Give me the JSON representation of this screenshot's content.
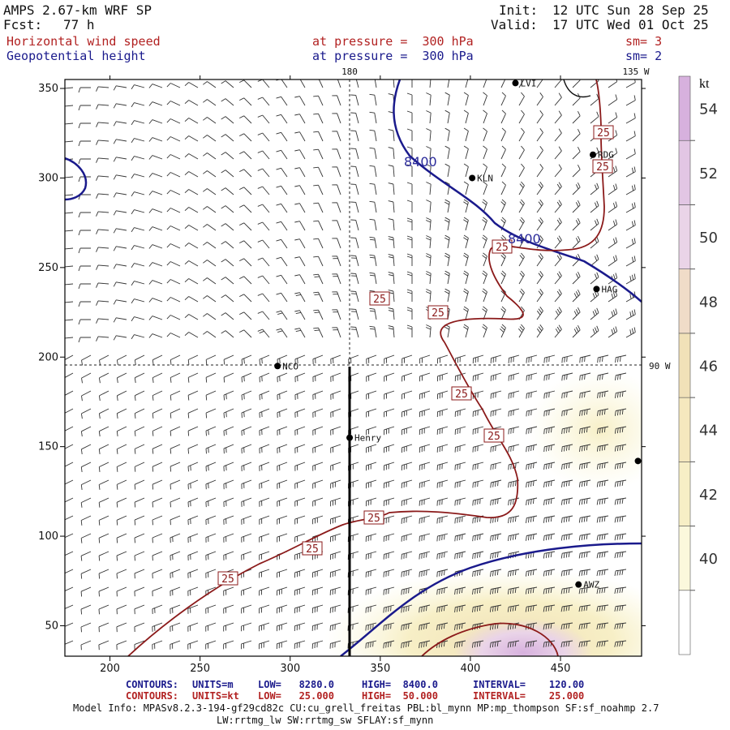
{
  "header": {
    "model_line": "AMPS 2.67-km WRF SP",
    "fcst_label": "Fcst:",
    "fcst_value": "77 h",
    "init_label": "Init:",
    "init_value": "12 UTC Sun 28 Sep 25",
    "valid_label": "Valid:",
    "valid_value": "17 UTC Wed 01 Oct 25",
    "field1": "Horizontal wind speed",
    "field1_pressure": "at pressure =  300 hPa",
    "field1_sm": "sm= 3",
    "field2": "Geopotential height",
    "field2_pressure": "at pressure =  300 hPa",
    "field2_sm": "sm= 2"
  },
  "chart_data": {
    "type": "contour_map",
    "xlim": [
      175,
      495
    ],
    "ylim": [
      33,
      355
    ],
    "x_ticks": [
      200,
      250,
      300,
      350,
      400,
      450
    ],
    "y_ticks": [
      50,
      100,
      150,
      200,
      250,
      300,
      350
    ],
    "meridian_labels": [
      "180",
      "135 W",
      "90 W"
    ],
    "colorbar": {
      "unit": "kt",
      "ticks": [
        40,
        42,
        44,
        46,
        48,
        50,
        52,
        54
      ]
    },
    "height_contours": [
      {
        "value": 8400,
        "label": "8400",
        "units": "m",
        "color": "#1a1a8c"
      }
    ],
    "wind_contours": [
      {
        "value": 25,
        "label": "25",
        "units": "kt",
        "color": "#b22222"
      },
      {
        "value": 50,
        "label": "",
        "units": "kt",
        "color": "#b22222"
      }
    ],
    "stations": [
      {
        "name": "LVI",
        "x": 425,
        "y": 353
      },
      {
        "name": "RDG",
        "x": 468,
        "y": 313
      },
      {
        "name": "KLN",
        "x": 401,
        "y": 300
      },
      {
        "name": "HAG",
        "x": 470,
        "y": 238
      },
      {
        "name": "NCO",
        "x": 293,
        "y": 195
      },
      {
        "name": "Henry",
        "x": 333,
        "y": 155
      },
      {
        "name": "AWZ",
        "x": 460,
        "y": 73
      },
      {
        "name": "",
        "x": 493,
        "y": 142
      }
    ]
  },
  "contour_info": {
    "row1": {
      "label": "CONTOURS:",
      "units": "UNITS=m",
      "low": "LOW=   8280.0",
      "high": "HIGH=  8400.0",
      "interval": "INTERVAL=    120.00"
    },
    "row2": {
      "label": "CONTOURS:",
      "units": "UNITS=kt",
      "low": "LOW=   25.000",
      "high": "HIGH=  50.000",
      "interval": "INTERVAL=    25.000"
    }
  },
  "model_info": {
    "line1": "Model Info: MPASv8.2.3-194-gf29cd82c CU:cu_grell_freitas PBL:bl_mynn MP:mp_thompson SF:sf_noahmp 2.7",
    "line2": "LW:rrtmg_lw SW:rrtmg_sw SFLAY:sf_mynn"
  },
  "colors": {
    "height": "#1a1a8c",
    "wind": "#b22222",
    "shade40": "#fbf8dc",
    "shade42": "#f7efc6",
    "shade44": "#f1e1b8",
    "shade50": "#ead4e8",
    "shade54": "#d7b1de"
  }
}
